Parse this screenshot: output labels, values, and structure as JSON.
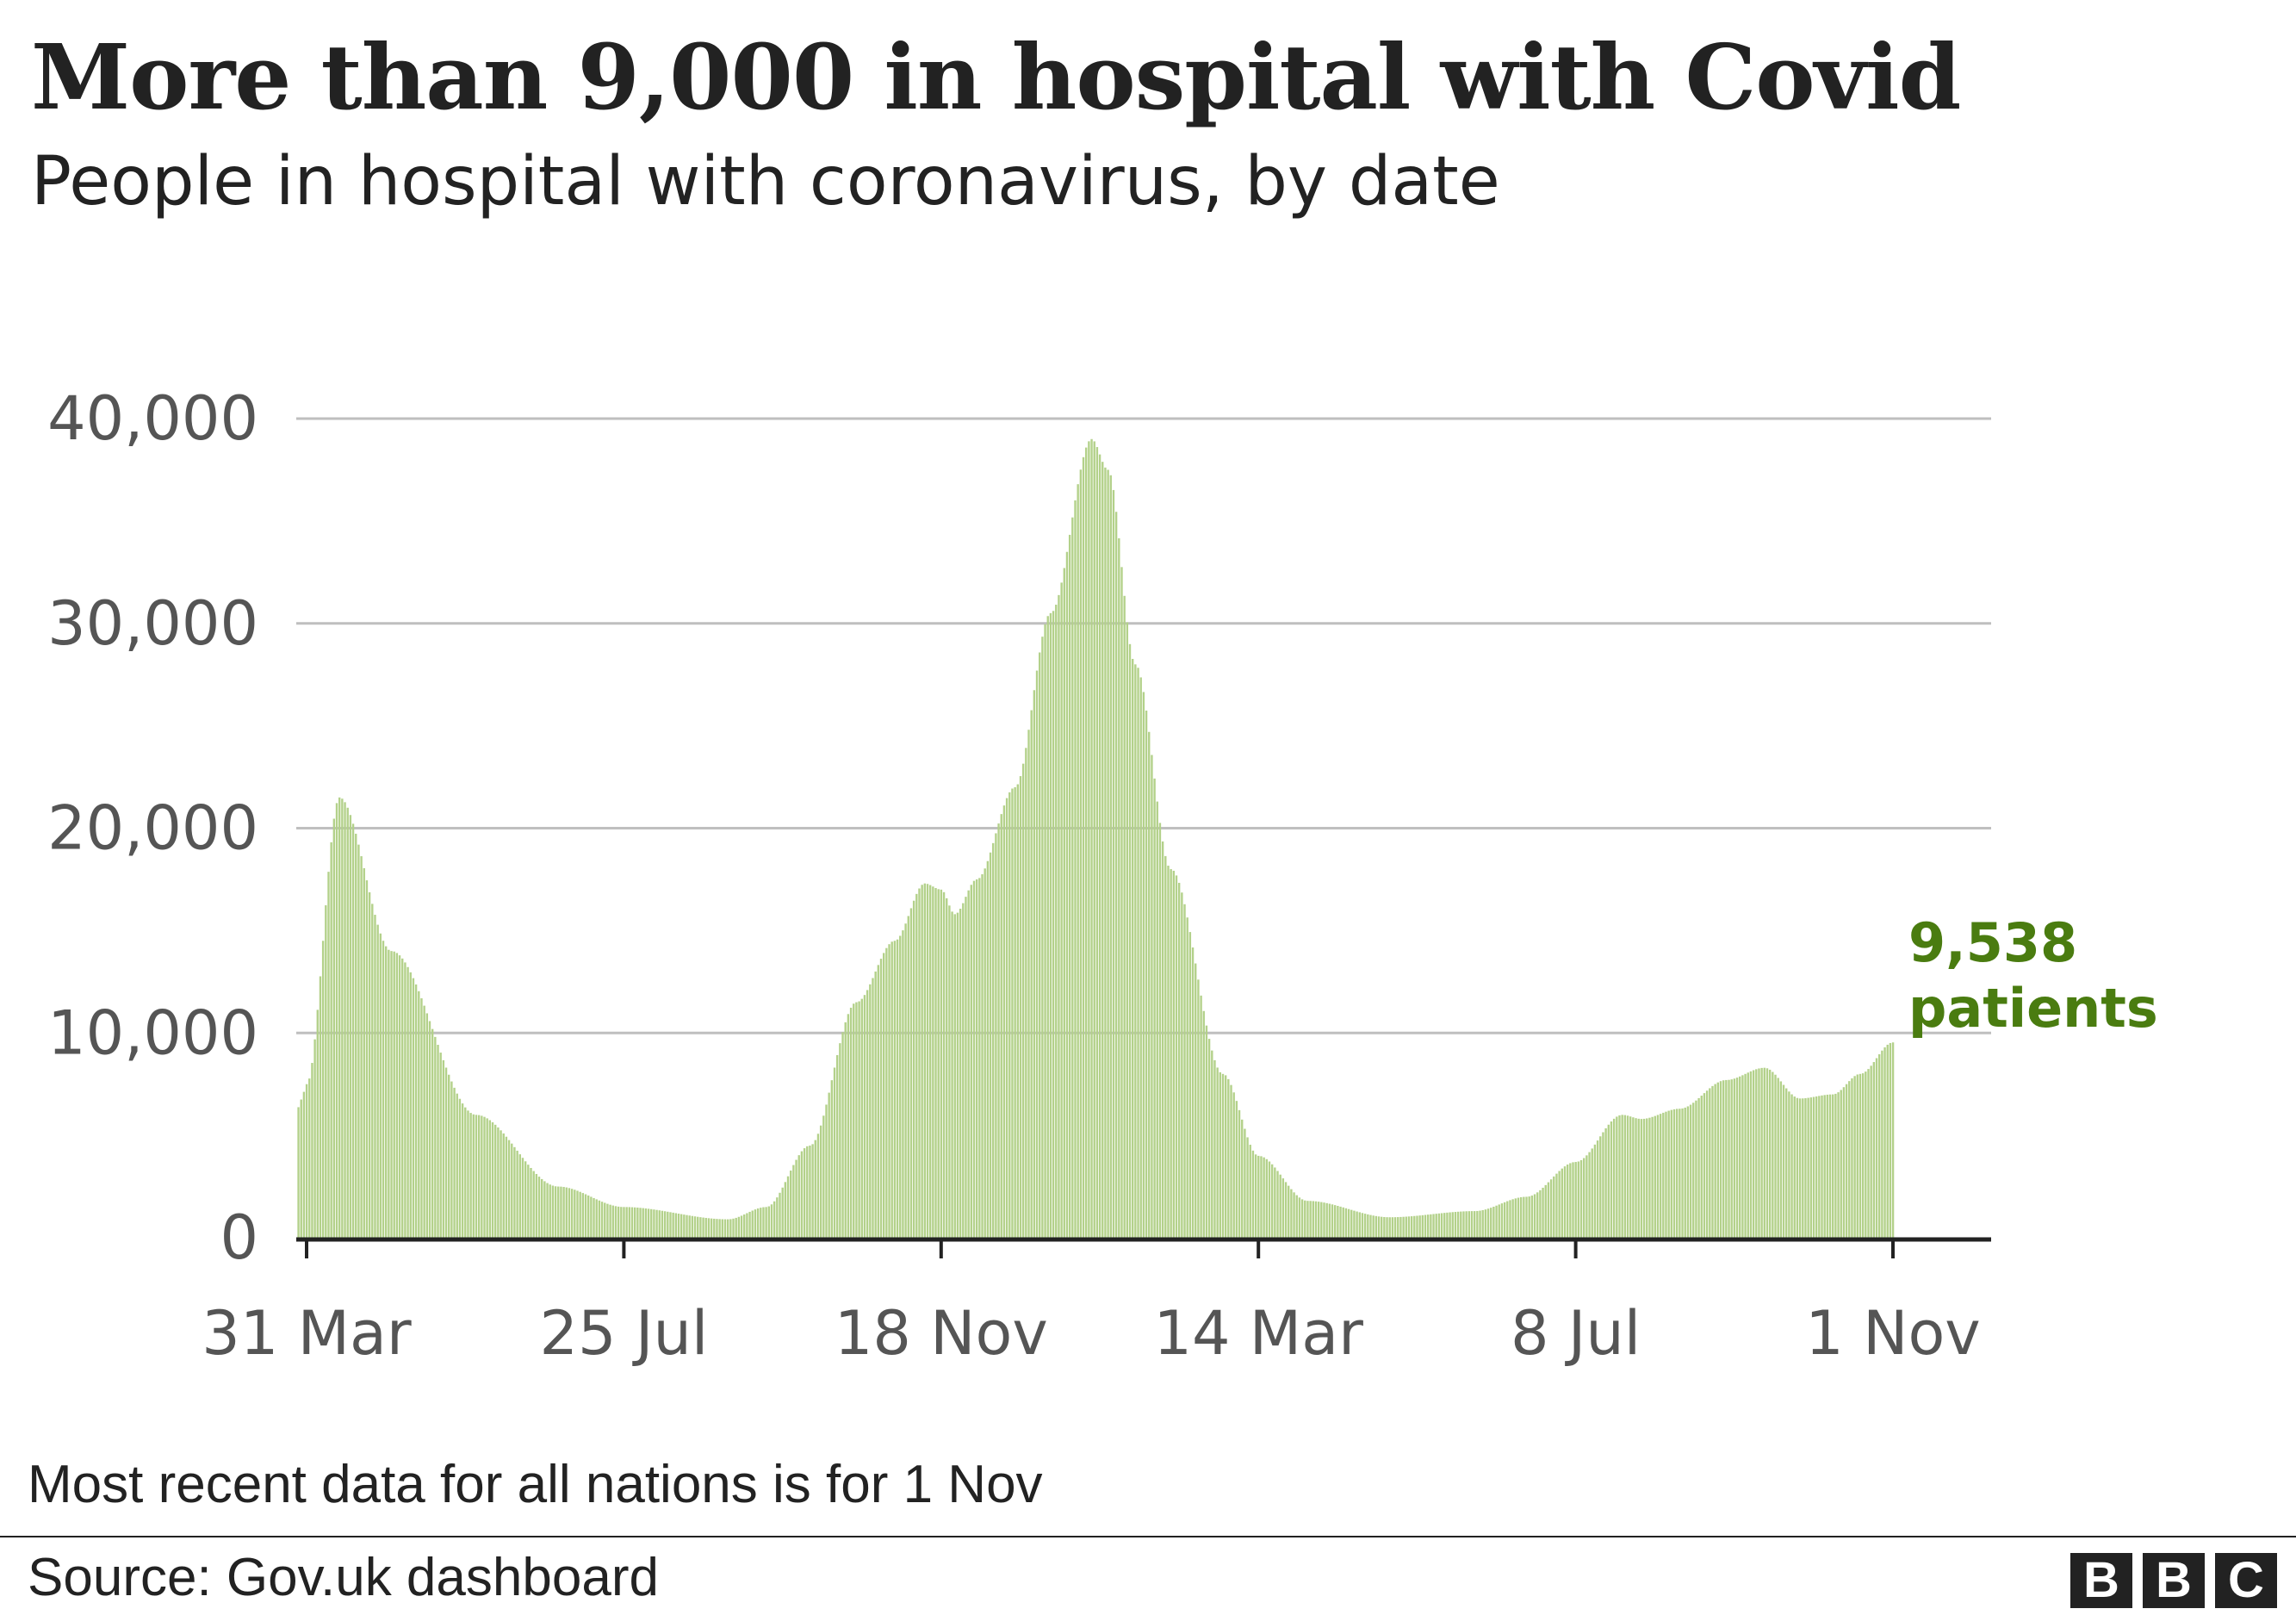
{
  "header": {
    "title": "More than 9,000 in hospital with Covid",
    "subtitle": "People in hospital with coronavirus, by date"
  },
  "footer": {
    "note": "Most recent data for all nations is for 1 Nov",
    "source": "Source: Gov.uk dashboard",
    "logo": [
      "B",
      "B",
      "C"
    ]
  },
  "colors": {
    "bar": "#b3d18a",
    "annotation": "#4a7c10",
    "grid": "#bfbfbf",
    "text": "#222222",
    "axis_text": "#555555"
  },
  "chart_data": {
    "type": "bar",
    "title": "More than 9,000 in hospital with Covid",
    "subtitle": "People in hospital with coronavirus, by date",
    "xlabel": "",
    "ylabel": "",
    "ylim": [
      0,
      40000
    ],
    "yticks": [
      0,
      10000,
      20000,
      30000,
      40000
    ],
    "ytick_labels": [
      "0",
      "10,000",
      "20,000",
      "30,000",
      "40,000"
    ],
    "xticks": [
      "31 Mar",
      "25 Jul",
      "18 Nov",
      "14 Mar",
      "8 Jul",
      "1 Nov"
    ],
    "grid": true,
    "annotation": {
      "value": "9,538",
      "text": "patients"
    },
    "series_anchor": {
      "x": [
        "31 Mar",
        "12 Apr",
        "1 May",
        "1 Jun",
        "1 Jul",
        "25 Jul",
        "1 Sep",
        "15 Sep",
        "1 Oct",
        "18 Oct",
        "1 Nov",
        "12 Nov",
        "18 Nov",
        "23 Nov",
        "1 Dec",
        "15 Dec",
        "28 Dec",
        "12 Jan",
        "18 Jan",
        "28 Jan",
        "10 Feb",
        "1 Mar",
        "14 Mar",
        "1 Apr",
        "1 May",
        "1 Jun",
        "20 Jun",
        "8 Jul",
        "25 Jul",
        "1 Aug",
        "15 Aug",
        "1 Sep",
        "15 Sep",
        "28 Sep",
        "10 Oct",
        "20 Oct",
        "1 Nov"
      ],
      "y": [
        7500,
        21500,
        14000,
        6000,
        2500,
        1500,
        900,
        1500,
        4500,
        11500,
        14500,
        17300,
        17000,
        15800,
        17500,
        22000,
        30500,
        39000,
        37500,
        28000,
        18000,
        8000,
        4000,
        1800,
        1000,
        1300,
        2000,
        3700,
        6000,
        5800,
        6300,
        7700,
        8300,
        6800,
        7000,
        8000,
        9538
      ]
    }
  }
}
